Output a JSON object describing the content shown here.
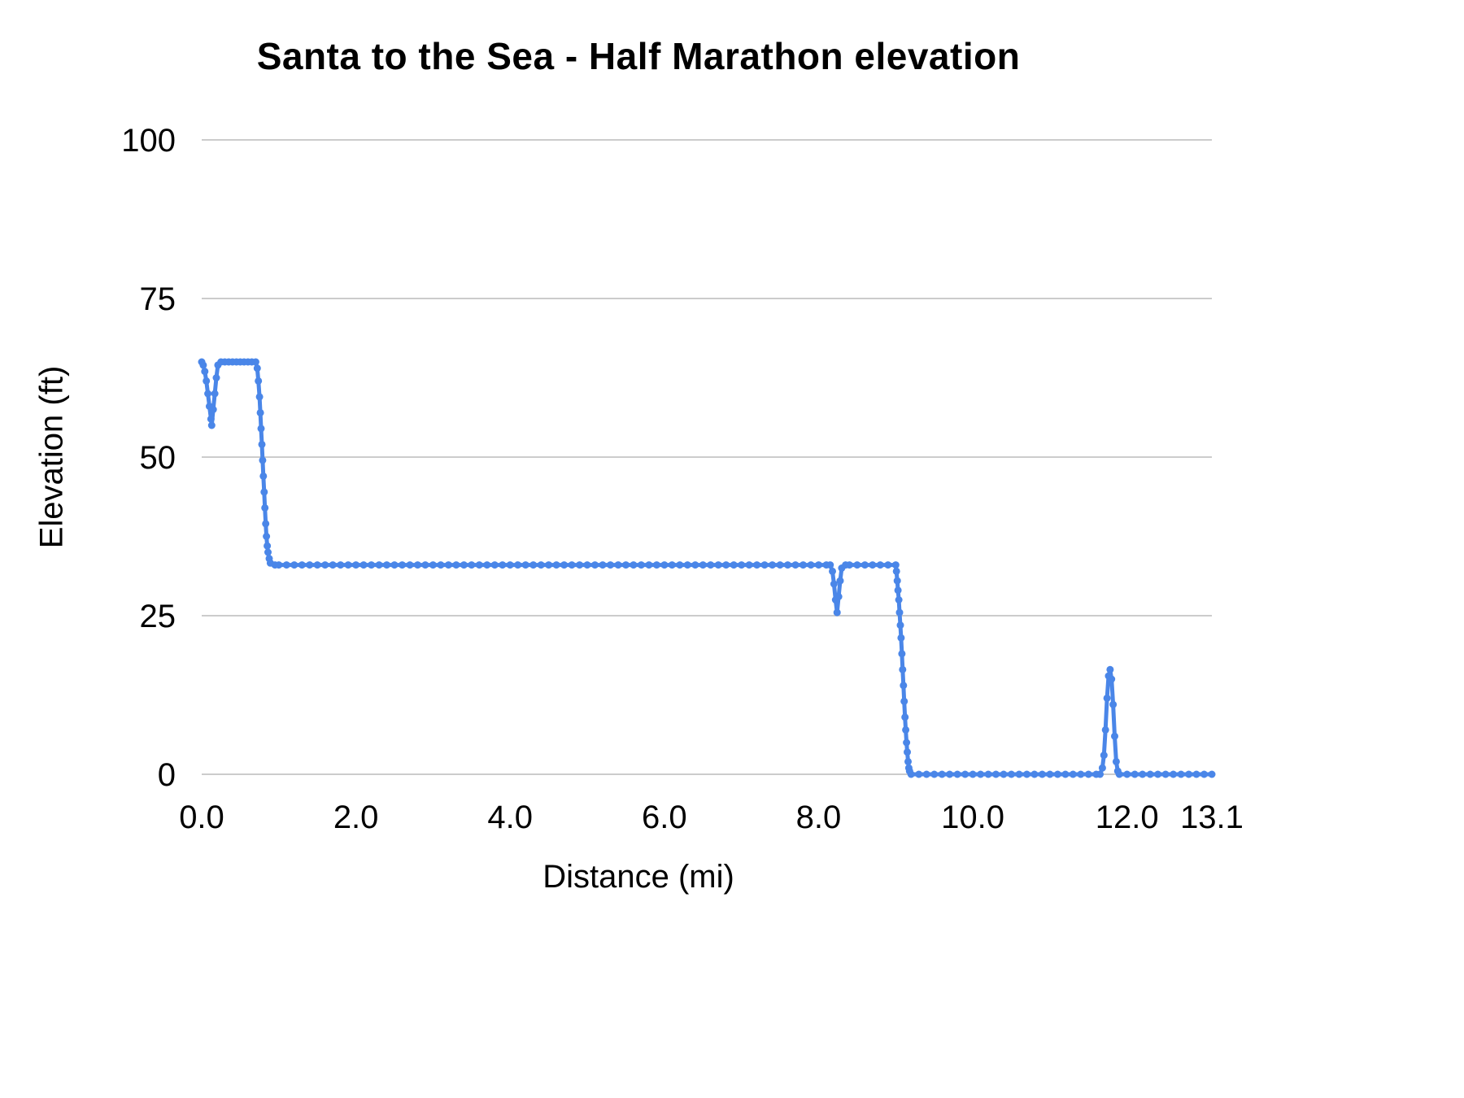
{
  "style": {
    "grid_color": "#cccccc",
    "text_color": "#000000",
    "background": "#ffffff",
    "line_width": 5,
    "marker_radius": 4.5
  },
  "chart_data": {
    "type": "line",
    "title": "Santa to the Sea - Half Marathon elevation",
    "xlabel": "Distance (mi)",
    "ylabel": "Elevation (ft)",
    "xlim": [
      0,
      13.1
    ],
    "ylim": [
      0,
      100
    ],
    "grid": "horizontal",
    "legend": "none",
    "x_ticks": [
      0.0,
      2.0,
      4.0,
      6.0,
      8.0,
      10.0,
      12.0,
      13.1
    ],
    "x_tick_labels": [
      "0.0",
      "2.0",
      "4.0",
      "6.0",
      "8.0",
      "10.0",
      "12.0",
      "13.1"
    ],
    "y_ticks": [
      0,
      25,
      50,
      75,
      100
    ],
    "y_tick_labels": [
      "0",
      "25",
      "50",
      "75",
      "100"
    ],
    "series": [
      {
        "name": "Elevation",
        "color": "#4a86e8",
        "points": [
          [
            0.0,
            65
          ],
          [
            0.02,
            64.5
          ],
          [
            0.04,
            63.5
          ],
          [
            0.06,
            62
          ],
          [
            0.08,
            60
          ],
          [
            0.1,
            58
          ],
          [
            0.12,
            56
          ],
          [
            0.13,
            55
          ],
          [
            0.15,
            57.5
          ],
          [
            0.17,
            60
          ],
          [
            0.19,
            62.5
          ],
          [
            0.21,
            64.5
          ],
          [
            0.25,
            65
          ],
          [
            0.3,
            65
          ],
          [
            0.35,
            65
          ],
          [
            0.4,
            65
          ],
          [
            0.45,
            65
          ],
          [
            0.5,
            65
          ],
          [
            0.55,
            65
          ],
          [
            0.6,
            65
          ],
          [
            0.65,
            65
          ],
          [
            0.7,
            65
          ],
          [
            0.72,
            64
          ],
          [
            0.735,
            62
          ],
          [
            0.75,
            59.5
          ],
          [
            0.76,
            57
          ],
          [
            0.77,
            54.5
          ],
          [
            0.78,
            52
          ],
          [
            0.79,
            49.5
          ],
          [
            0.8,
            47
          ],
          [
            0.81,
            44.5
          ],
          [
            0.82,
            42
          ],
          [
            0.83,
            39.5
          ],
          [
            0.84,
            37.5
          ],
          [
            0.85,
            36
          ],
          [
            0.86,
            35
          ],
          [
            0.875,
            34
          ],
          [
            0.89,
            33.3
          ],
          [
            0.95,
            33
          ],
          [
            1.0,
            33
          ],
          [
            1.1,
            33
          ],
          [
            1.2,
            33
          ],
          [
            1.3,
            33
          ],
          [
            1.4,
            33
          ],
          [
            1.5,
            33
          ],
          [
            1.6,
            33
          ],
          [
            1.7,
            33
          ],
          [
            1.8,
            33
          ],
          [
            1.9,
            33
          ],
          [
            2.0,
            33
          ],
          [
            2.1,
            33
          ],
          [
            2.2,
            33
          ],
          [
            2.3,
            33
          ],
          [
            2.4,
            33
          ],
          [
            2.5,
            33
          ],
          [
            2.6,
            33
          ],
          [
            2.7,
            33
          ],
          [
            2.8,
            33
          ],
          [
            2.9,
            33
          ],
          [
            3.0,
            33
          ],
          [
            3.1,
            33
          ],
          [
            3.2,
            33
          ],
          [
            3.3,
            33
          ],
          [
            3.4,
            33
          ],
          [
            3.5,
            33
          ],
          [
            3.6,
            33
          ],
          [
            3.7,
            33
          ],
          [
            3.8,
            33
          ],
          [
            3.9,
            33
          ],
          [
            4.0,
            33
          ],
          [
            4.1,
            33
          ],
          [
            4.2,
            33
          ],
          [
            4.3,
            33
          ],
          [
            4.4,
            33
          ],
          [
            4.5,
            33
          ],
          [
            4.6,
            33
          ],
          [
            4.7,
            33
          ],
          [
            4.8,
            33
          ],
          [
            4.9,
            33
          ],
          [
            5.0,
            33
          ],
          [
            5.1,
            33
          ],
          [
            5.2,
            33
          ],
          [
            5.3,
            33
          ],
          [
            5.4,
            33
          ],
          [
            5.5,
            33
          ],
          [
            5.6,
            33
          ],
          [
            5.7,
            33
          ],
          [
            5.8,
            33
          ],
          [
            5.9,
            33
          ],
          [
            6.0,
            33
          ],
          [
            6.1,
            33
          ],
          [
            6.2,
            33
          ],
          [
            6.3,
            33
          ],
          [
            6.4,
            33
          ],
          [
            6.5,
            33
          ],
          [
            6.6,
            33
          ],
          [
            6.7,
            33
          ],
          [
            6.8,
            33
          ],
          [
            6.9,
            33
          ],
          [
            7.0,
            33
          ],
          [
            7.1,
            33
          ],
          [
            7.2,
            33
          ],
          [
            7.3,
            33
          ],
          [
            7.4,
            33
          ],
          [
            7.5,
            33
          ],
          [
            7.6,
            33
          ],
          [
            7.7,
            33
          ],
          [
            7.8,
            33
          ],
          [
            7.9,
            33
          ],
          [
            8.0,
            33
          ],
          [
            8.1,
            33
          ],
          [
            8.15,
            33
          ],
          [
            8.18,
            32
          ],
          [
            8.2,
            30
          ],
          [
            8.22,
            27.5
          ],
          [
            8.24,
            25.5
          ],
          [
            8.26,
            28
          ],
          [
            8.28,
            30.5
          ],
          [
            8.3,
            32.5
          ],
          [
            8.35,
            33
          ],
          [
            8.4,
            33
          ],
          [
            8.5,
            33
          ],
          [
            8.6,
            33
          ],
          [
            8.7,
            33
          ],
          [
            8.8,
            33
          ],
          [
            8.9,
            33
          ],
          [
            9.0,
            33
          ],
          [
            9.01,
            32
          ],
          [
            9.02,
            30.5
          ],
          [
            9.03,
            29
          ],
          [
            9.04,
            27.5
          ],
          [
            9.05,
            25.5
          ],
          [
            9.06,
            23.5
          ],
          [
            9.07,
            21.5
          ],
          [
            9.08,
            19
          ],
          [
            9.09,
            16.5
          ],
          [
            9.1,
            14
          ],
          [
            9.11,
            11.5
          ],
          [
            9.12,
            9
          ],
          [
            9.13,
            7
          ],
          [
            9.14,
            5
          ],
          [
            9.15,
            3.5
          ],
          [
            9.16,
            2
          ],
          [
            9.17,
            1
          ],
          [
            9.18,
            0.5
          ],
          [
            9.2,
            0
          ],
          [
            9.3,
            0
          ],
          [
            9.4,
            0
          ],
          [
            9.5,
            0
          ],
          [
            9.6,
            0
          ],
          [
            9.7,
            0
          ],
          [
            9.8,
            0
          ],
          [
            9.9,
            0
          ],
          [
            10.0,
            0
          ],
          [
            10.1,
            0
          ],
          [
            10.2,
            0
          ],
          [
            10.3,
            0
          ],
          [
            10.4,
            0
          ],
          [
            10.5,
            0
          ],
          [
            10.6,
            0
          ],
          [
            10.7,
            0
          ],
          [
            10.8,
            0
          ],
          [
            10.9,
            0
          ],
          [
            11.0,
            0
          ],
          [
            11.1,
            0
          ],
          [
            11.2,
            0
          ],
          [
            11.3,
            0
          ],
          [
            11.4,
            0
          ],
          [
            11.5,
            0
          ],
          [
            11.6,
            0
          ],
          [
            11.65,
            0
          ],
          [
            11.68,
            1
          ],
          [
            11.7,
            3
          ],
          [
            11.72,
            7
          ],
          [
            11.74,
            12
          ],
          [
            11.76,
            15.5
          ],
          [
            11.78,
            16.5
          ],
          [
            11.8,
            15
          ],
          [
            11.82,
            11
          ],
          [
            11.84,
            6
          ],
          [
            11.86,
            2
          ],
          [
            11.88,
            0.5
          ],
          [
            11.9,
            0
          ],
          [
            12.0,
            0
          ],
          [
            12.1,
            0
          ],
          [
            12.2,
            0
          ],
          [
            12.3,
            0
          ],
          [
            12.4,
            0
          ],
          [
            12.5,
            0
          ],
          [
            12.6,
            0
          ],
          [
            12.7,
            0
          ],
          [
            12.8,
            0
          ],
          [
            12.9,
            0
          ],
          [
            13.0,
            0
          ],
          [
            13.1,
            0
          ]
        ]
      }
    ]
  }
}
